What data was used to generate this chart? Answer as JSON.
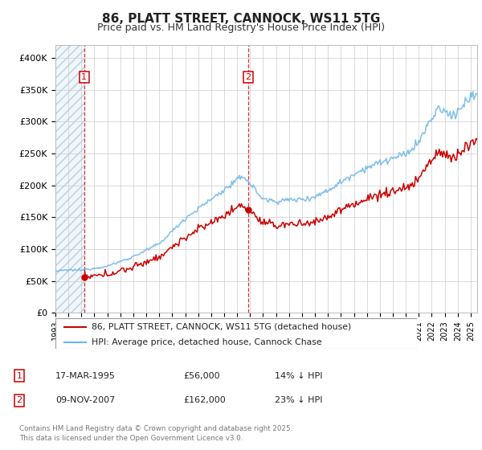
{
  "title": "86, PLATT STREET, CANNOCK, WS11 5TG",
  "subtitle": "Price paid vs. HM Land Registry's House Price Index (HPI)",
  "legend_line1": "86, PLATT STREET, CANNOCK, WS11 5TG (detached house)",
  "legend_line2": "HPI: Average price, detached house, Cannock Chase",
  "footnote": "Contains HM Land Registry data © Crown copyright and database right 2025.\nThis data is licensed under the Open Government Licence v3.0.",
  "sale1_date": "17-MAR-1995",
  "sale1_price": "£56,000",
  "sale1_hpi": "14% ↓ HPI",
  "sale2_date": "09-NOV-2007",
  "sale2_price": "£162,000",
  "sale2_hpi": "23% ↓ HPI",
  "sale1_x": 1995.21,
  "sale1_y": 56000,
  "sale2_x": 2007.86,
  "sale2_y": 162000,
  "ylim_min": 0,
  "ylim_max": 420000,
  "xlim_min": 1993.0,
  "xlim_max": 2025.5,
  "yticks": [
    0,
    50000,
    100000,
    150000,
    200000,
    250000,
    300000,
    350000,
    400000
  ],
  "ytick_labels": [
    "£0",
    "£50K",
    "£100K",
    "£150K",
    "£200K",
    "£250K",
    "£300K",
    "£350K",
    "£400K"
  ],
  "hpi_color": "#6ab4e8",
  "price_color": "#cc0000",
  "bg_color": "#ffffff",
  "grid_color": "#cccccc",
  "hpi_anchors": {
    "1993.0": 65000,
    "1994.0": 67000,
    "1995.0": 67000,
    "1997.0": 73000,
    "1999.0": 88000,
    "2001.0": 108000,
    "2003.0": 148000,
    "2005.0": 178000,
    "2007.5": 215000,
    "2009.0": 178000,
    "2010.0": 175000,
    "2011.0": 177000,
    "2012.0": 178000,
    "2013.0": 182000,
    "2014.0": 192000,
    "2015.0": 205000,
    "2016.0": 218000,
    "2017.0": 228000,
    "2018.0": 235000,
    "2019.0": 242000,
    "2020.0": 248000,
    "2021.0": 268000,
    "2022.0": 305000,
    "2022.5": 320000,
    "2023.0": 315000,
    "2023.5": 310000,
    "2024.0": 315000,
    "2024.5": 328000,
    "2025.3": 342000
  }
}
